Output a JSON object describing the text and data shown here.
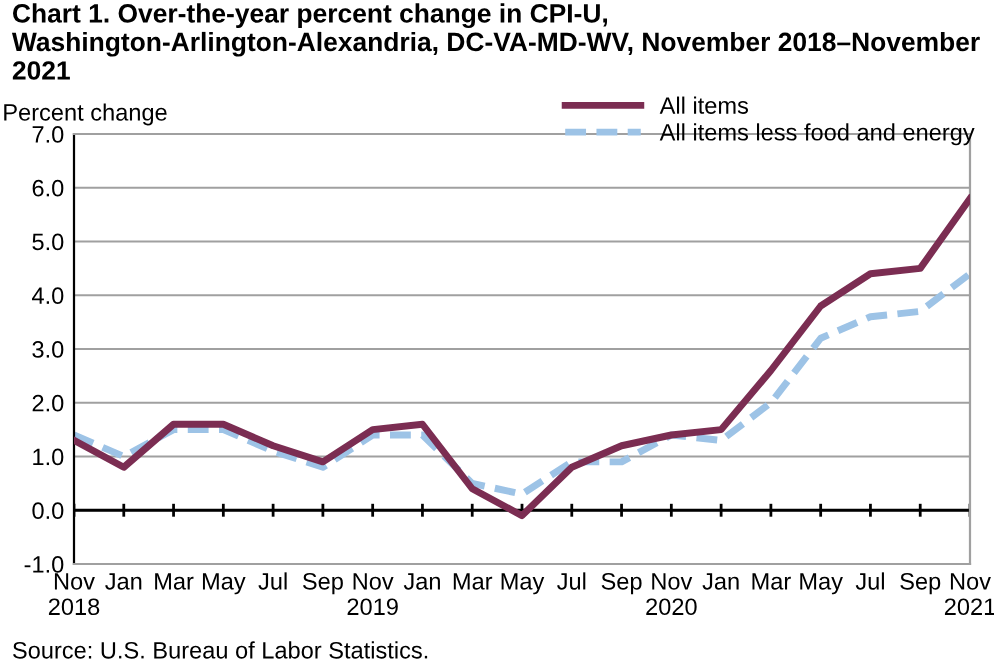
{
  "chart_data": {
    "type": "line",
    "title": "Chart 1. Over-the-year percent change in CPI-U, Washington-Arlington-Alexandria, DC-VA-MD-WV, November 2018–November 2021",
    "ylabel": "Percent change",
    "categories": [
      "Nov\n2018",
      "Jan",
      "Mar",
      "May",
      "Jul",
      "Sep",
      "Nov\n2019",
      "Jan",
      "Mar",
      "May",
      "Jul",
      "Sep",
      "Nov\n2020",
      "Jan",
      "Mar",
      "May",
      "Jul",
      "Sep",
      "Nov\n2021"
    ],
    "series": [
      {
        "name": "All items",
        "color": "#7b2d52",
        "line_style": "solid",
        "values": [
          1.3,
          0.8,
          1.6,
          1.6,
          1.2,
          0.9,
          1.5,
          1.6,
          0.4,
          -0.1,
          0.8,
          1.2,
          1.4,
          1.5,
          2.6,
          3.8,
          4.4,
          4.5,
          5.8
        ]
      },
      {
        "name": "All items less food and energy",
        "color": "#9dc3e6",
        "line_style": "dashed",
        "values": [
          1.4,
          1.0,
          1.5,
          1.5,
          1.1,
          0.8,
          1.4,
          1.4,
          0.5,
          0.3,
          0.9,
          0.9,
          1.4,
          1.3,
          2.0,
          3.2,
          3.6,
          3.7,
          4.4
        ]
      }
    ],
    "ylim": [
      -1.0,
      7.0
    ],
    "yticks": [
      {
        "value": -1.0,
        "label": "-1.0"
      },
      {
        "value": 0.0,
        "label": "0.0"
      },
      {
        "value": 1.0,
        "label": "1.0"
      },
      {
        "value": 2.0,
        "label": "2.0"
      },
      {
        "value": 3.0,
        "label": "3.0"
      },
      {
        "value": 4.0,
        "label": "4.0"
      },
      {
        "value": 5.0,
        "label": "5.0"
      },
      {
        "value": 6.0,
        "label": "6.0"
      },
      {
        "value": 7.0,
        "label": "7.0"
      }
    ],
    "grid": "y",
    "legend": "top right",
    "marker": "none",
    "annotations": [
      "Source: U.S. Bureau of Labor Statistics."
    ]
  }
}
